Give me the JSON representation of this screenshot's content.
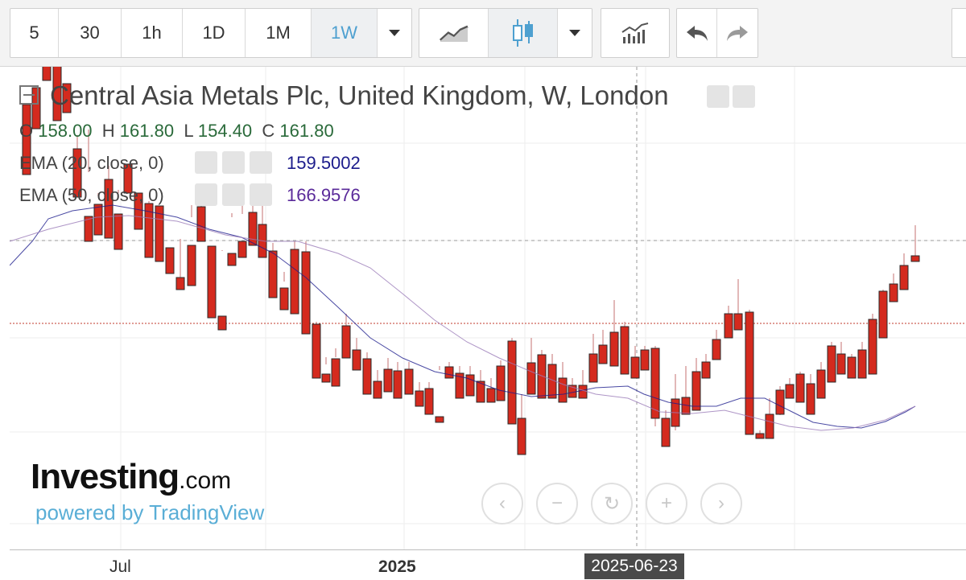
{
  "toolbar": {
    "intervals": [
      "5",
      "30",
      "1h",
      "1D",
      "1M",
      "1W"
    ],
    "active_interval": "1W",
    "icons": [
      "chevron-down-icon",
      "line-chart-icon",
      "candlestick-icon",
      "chevron-down-icon",
      "indicators-icon",
      "undo-icon",
      "redo-icon"
    ]
  },
  "legend": {
    "title": "Central Asia Metals Plc, United Kingdom, W, London",
    "ohlc": {
      "o_label": "O",
      "o_value": "158.00",
      "h_label": "H",
      "h_value": "161.80",
      "l_label": "L",
      "l_value": "154.40",
      "c_label": "C",
      "c_value": "161.80"
    },
    "ema20": {
      "label": "EMA (20, close, 0)",
      "value": "159.5002",
      "color": "#1c1c8c"
    },
    "ema50": {
      "label": "EMA (50, close, 0)",
      "value": "166.9576",
      "color": "#5a2a9a"
    }
  },
  "watermark": {
    "brand": "Investing",
    "suffix": ".com",
    "powered": "powered by TradingView"
  },
  "time_axis": {
    "labels": [
      "Jul",
      "2025"
    ],
    "crosshair_date": "2025-06-23"
  },
  "colors": {
    "up": "#3cb043",
    "down": "#d42a1e",
    "accent": "#4ea0d0"
  },
  "chart_data": {
    "type": "candlestick",
    "interval": "W",
    "last_close": 161.8
  }
}
